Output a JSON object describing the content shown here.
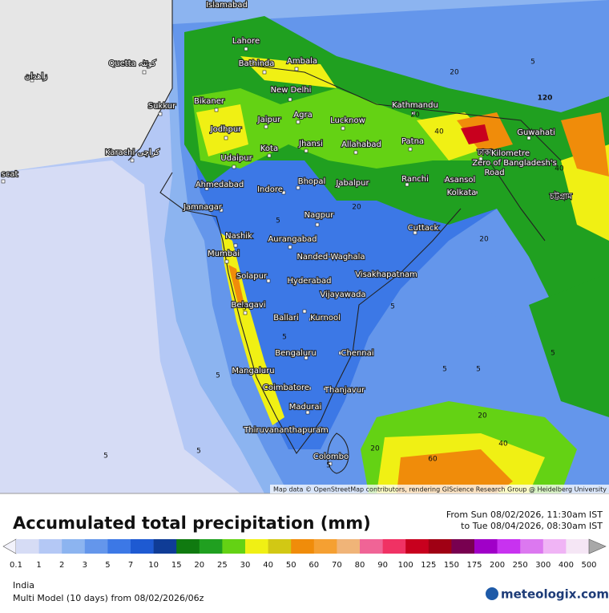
{
  "map": {
    "cities": [
      "Islamabad",
      "Lahore",
      "Bathinda",
      "Ambala",
      "Quetta کوئٹہ",
      "زاهدان",
      "Sukkur",
      "New Delhi",
      "Bikaner",
      "Jaipur",
      "Agra",
      "Lucknow",
      "Kathmandu",
      "Jodhpur",
      "Jhansi",
      "Allahabad",
      "Patna",
      "Guwahati",
      "Karachi کراچی",
      "Kota",
      "Udaipur",
      "ঢাকা",
      "Kilometre",
      "Zero of Bangladesh's",
      "Road",
      "Ahmedabad",
      "Indore",
      "Bhopal",
      "Jabalpur",
      "Ranchi",
      "Asansol",
      "Kolkata",
      "scat",
      "চট্টগ্রাম",
      "Jamnagar",
      "Nagpur",
      "Cuttack",
      "Nashik",
      "Aurangabad",
      "Mumbai",
      "Nanded-Waghala",
      "Visakhapatnam",
      "Solapur",
      "Hyderabad",
      "Vijayawada",
      "Belagavi",
      "Ballari",
      "Kurnool",
      "Bengaluru",
      "Chennai",
      "Mangaluru",
      "Coimbatore",
      "Thanjavur",
      "Madurai",
      "Thiruvananthapuram",
      "Colombo"
    ],
    "contour_labels": [
      "5",
      "5",
      "5",
      "5",
      "5",
      "5",
      "5",
      "5",
      "5",
      "5",
      "5",
      "5",
      "20",
      "20",
      "20",
      "20",
      "20",
      "20",
      "40",
      "40",
      "40",
      "60",
      "120"
    ],
    "attribution": "Map data © OpenStreetMap contributors, rendering GIScience Research Group @ Heidelberg University"
  },
  "legend": {
    "title": "Accumulated total precipitation (mm)",
    "from": "From Sun 08/02/2026, 11:30am IST",
    "to": "to Tue 08/04/2026, 08:30am IST",
    "ticks": [
      "0.1",
      "1",
      "2",
      "3",
      "5",
      "7",
      "10",
      "15",
      "20",
      "25",
      "30",
      "40",
      "50",
      "60",
      "70",
      "80",
      "90",
      "100",
      "125",
      "150",
      "175",
      "200",
      "250",
      "300",
      "400",
      "500"
    ],
    "colors": [
      "#f2f2fb",
      "#d6dcf5",
      "#b4c8f5",
      "#8cb4f0",
      "#6496eb",
      "#3c78e6",
      "#1e5ad2",
      "#0f3c96",
      "#107a10",
      "#20a020",
      "#64d214",
      "#f0f014",
      "#d2c814",
      "#f08c0a",
      "#f5a032",
      "#f0b478",
      "#f06496",
      "#f03264",
      "#c8001e",
      "#a00014",
      "#780050",
      "#a000c8",
      "#c832f0",
      "#dc78f0",
      "#f0b4f5",
      "#f5e6f5",
      "#a8a8a8"
    ]
  },
  "footer": {
    "region": "India",
    "model": "Multi Model (10 days) from 08/02/2026/06z",
    "brand": "meteologix.com"
  }
}
